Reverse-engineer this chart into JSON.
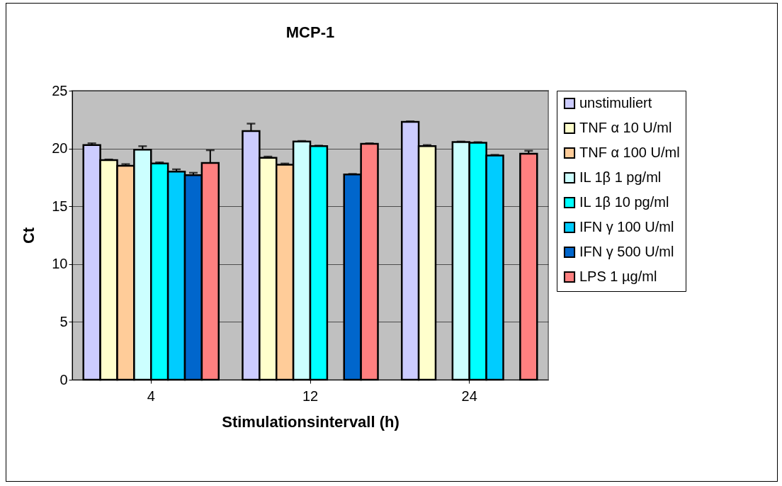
{
  "chart_data": {
    "type": "bar",
    "title": "MCP-1",
    "xlabel": "Stimulationsintervall (h)",
    "ylabel": "Ct",
    "categories": [
      "4",
      "12",
      "24"
    ],
    "ylim": [
      0,
      25
    ],
    "yticks": [
      0,
      5,
      10,
      15,
      20,
      25
    ],
    "grid": "y",
    "legend": "right",
    "series": [
      {
        "name": "unstimuliert",
        "color": "#ccccff",
        "values": [
          20.3,
          21.5,
          22.3
        ],
        "errors": [
          [
            20.3,
            20.45
          ],
          [
            21.5,
            22.15
          ],
          [
            22.3,
            22.35
          ]
        ]
      },
      {
        "name": "TNF α 10 U/ml",
        "color": "#ffffcc",
        "values": [
          19.0,
          19.2,
          20.2
        ],
        "errors": [
          [
            19.0,
            19.05
          ],
          [
            19.2,
            19.3
          ],
          [
            20.2,
            20.3
          ]
        ]
      },
      {
        "name": "TNF α 100 U/ml",
        "color": "#ffcc99",
        "values": [
          18.5,
          18.6,
          null
        ],
        "errors": [
          [
            18.5,
            18.65
          ],
          [
            18.6,
            18.7
          ],
          null
        ]
      },
      {
        "name": "IL 1β 1 pg/ml",
        "color": "#ccffff",
        "values": [
          19.9,
          20.6,
          20.55
        ],
        "errors": [
          [
            19.9,
            20.2
          ],
          [
            20.6,
            20.65
          ],
          [
            20.55,
            20.6
          ]
        ]
      },
      {
        "name": "IL 1β 10 pg/ml",
        "color": "#00ffff",
        "values": [
          18.7,
          20.2,
          20.5
        ],
        "errors": [
          [
            18.7,
            18.8
          ],
          [
            20.2,
            20.25
          ],
          [
            20.5,
            20.55
          ]
        ]
      },
      {
        "name": "IFN γ 100 U/ml",
        "color": "#00ccff",
        "values": [
          18.0,
          null,
          19.4
        ],
        "errors": [
          [
            18.0,
            18.2
          ],
          null,
          [
            19.4,
            19.45
          ]
        ]
      },
      {
        "name": "IFN γ 500 U/ml",
        "color": "#0066cc",
        "values": [
          17.7,
          17.75,
          null
        ],
        "errors": [
          [
            17.7,
            17.9
          ],
          [
            17.75,
            17.8
          ],
          null
        ]
      },
      {
        "name": "LPS 1 µg/ml",
        "color": "#ff8080",
        "values": [
          18.75,
          20.4,
          19.55
        ],
        "errors": [
          [
            18.75,
            19.85
          ],
          [
            20.4,
            20.45
          ],
          [
            19.55,
            19.8
          ]
        ]
      }
    ]
  }
}
